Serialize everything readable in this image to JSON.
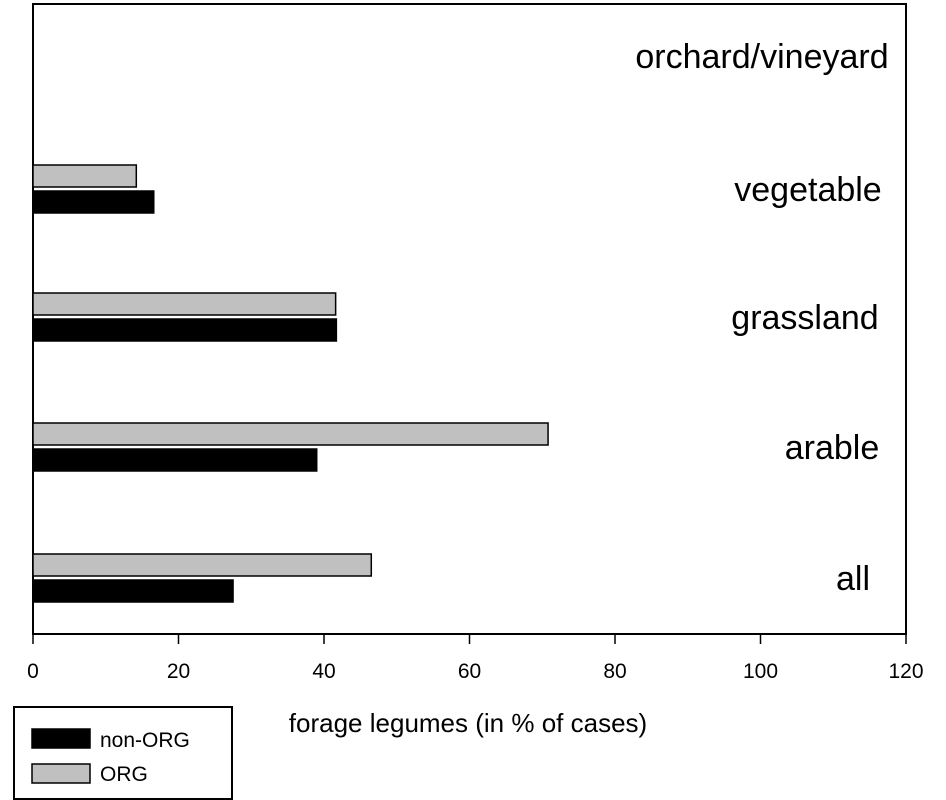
{
  "chart_data": {
    "type": "bar",
    "orientation": "horizontal",
    "categories": [
      "all",
      "arable",
      "grassland",
      "vegetable",
      "orchard/vineyard"
    ],
    "series": [
      {
        "name": "non-ORG",
        "color": "#000000",
        "values": [
          27.5,
          39,
          41.7,
          16.6,
          null
        ]
      },
      {
        "name": "ORG",
        "color": "#c0c0c0",
        "values": [
          46.5,
          70.8,
          41.6,
          14.2,
          null
        ]
      }
    ],
    "xlabel": "forage legumes (in % of cases)",
    "ylabel": "",
    "xlim": [
      0,
      120
    ],
    "xticks": [
      "0",
      "20",
      "40",
      "60",
      "80",
      "100",
      "120"
    ],
    "grid": false,
    "legend_position": "bottom-left"
  }
}
